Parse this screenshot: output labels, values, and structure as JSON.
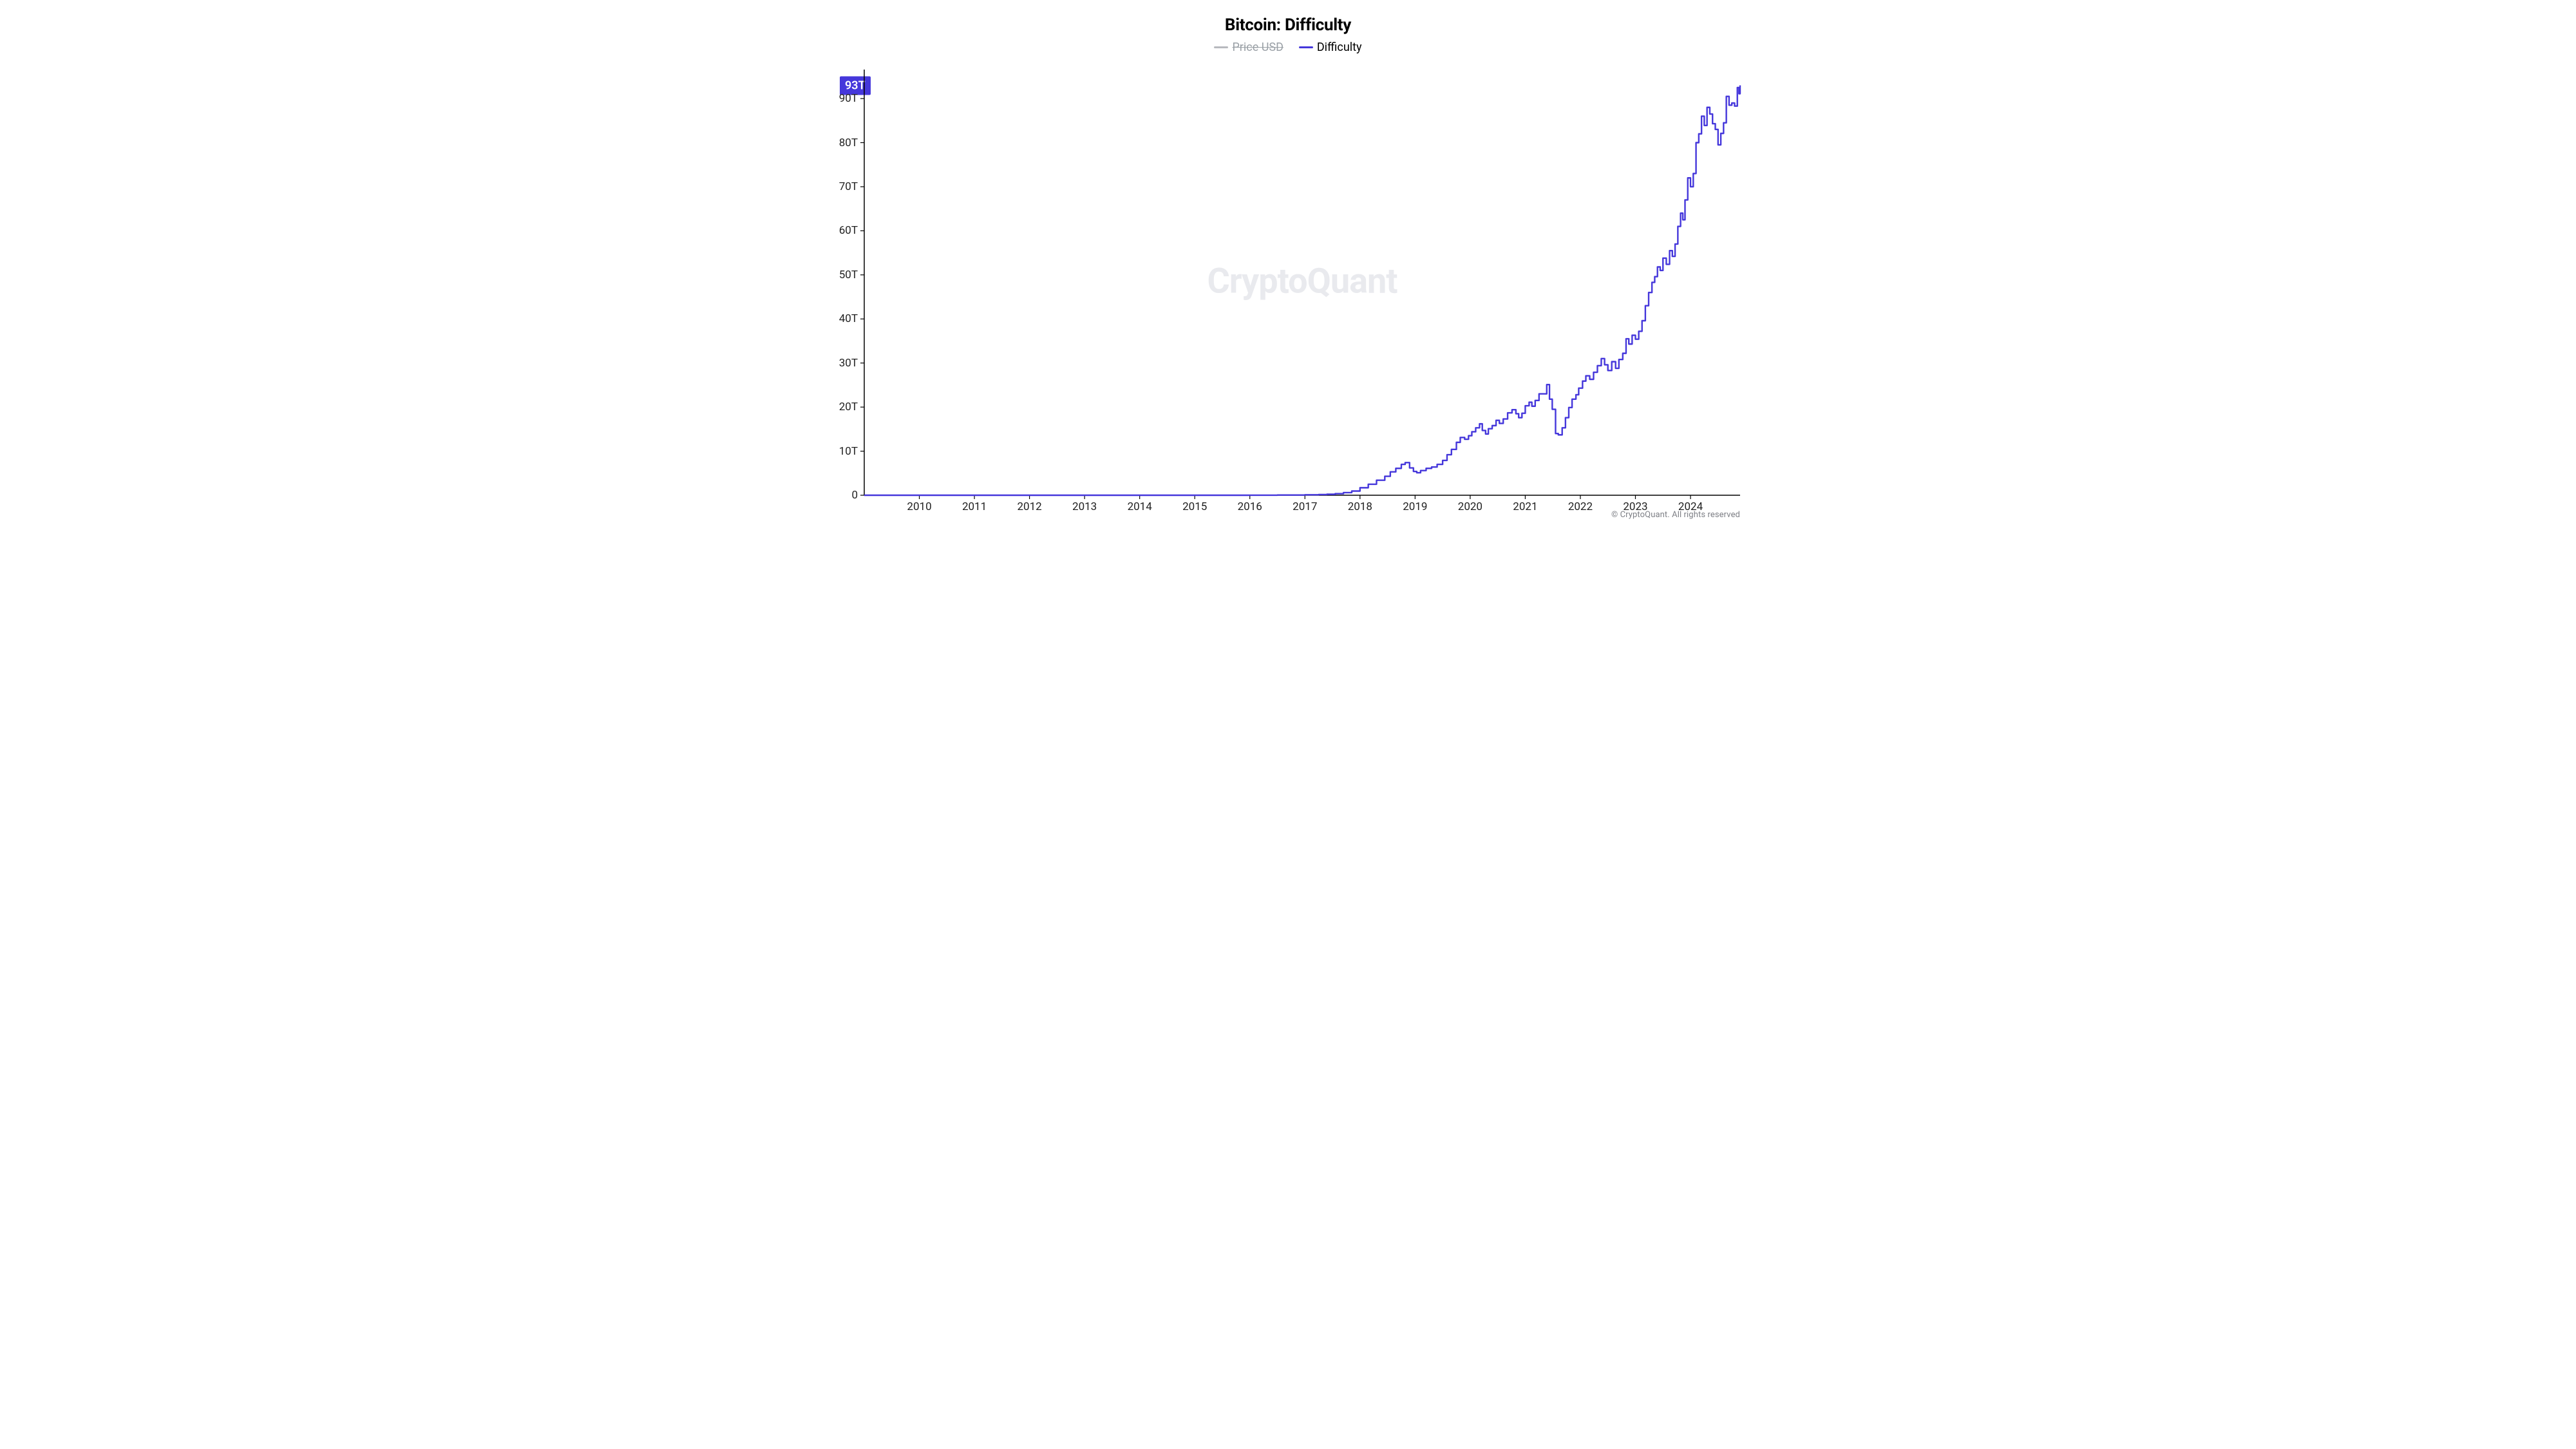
{
  "chart": {
    "type": "line",
    "title": "Bitcoin: Difficulty",
    "title_fontsize": 26,
    "background_color": "#ffffff",
    "watermark_text": "CryptoQuant",
    "watermark_color": "#e9eaee",
    "watermark_fontsize": 54,
    "copyright": "© CryptoQuant. All rights reserved",
    "copyright_fontsize": 13,
    "legend": [
      {
        "label": "Price USD",
        "color": "#b7b9be",
        "enabled": false
      },
      {
        "label": "Difficulty",
        "color": "#4537db",
        "enabled": true
      }
    ],
    "legend_fontsize": 18,
    "x": {
      "domain_min": 2009.0,
      "domain_max": 2024.9,
      "ticks": [
        2010,
        2011,
        2012,
        2013,
        2014,
        2015,
        2016,
        2017,
        2018,
        2019,
        2020,
        2021,
        2022,
        2023,
        2024
      ],
      "tick_labels": [
        "2010",
        "2011",
        "2012",
        "2013",
        "2014",
        "2015",
        "2016",
        "2017",
        "2018",
        "2019",
        "2020",
        "2021",
        "2022",
        "2023",
        "2024"
      ],
      "tick_fontsize": 17
    },
    "y": {
      "domain_min": 0,
      "domain_max": 96,
      "ticks": [
        0,
        10,
        20,
        30,
        40,
        50,
        60,
        70,
        80,
        90
      ],
      "tick_labels": [
        "0",
        "10T",
        "20T",
        "30T",
        "40T",
        "50T",
        "60T",
        "70T",
        "80T",
        "90T"
      ],
      "tick_fontsize": 17
    },
    "current_value_badge": {
      "text": "93T",
      "y": 93,
      "bg": "#4537db",
      "fg": "#ffffff",
      "fontsize": 18
    },
    "axis_color": "#000000",
    "tick_len": 6,
    "series": {
      "name": "Difficulty",
      "color": "#4537db",
      "line_width": 2.4,
      "points": [
        [
          2009.0,
          0.0
        ],
        [
          2010.0,
          0.0
        ],
        [
          2011.0,
          0.0
        ],
        [
          2012.0,
          0.0
        ],
        [
          2013.0,
          0.0
        ],
        [
          2014.0,
          0.0
        ],
        [
          2015.0,
          0.0
        ],
        [
          2016.0,
          0.01
        ],
        [
          2016.5,
          0.05
        ],
        [
          2017.0,
          0.1
        ],
        [
          2017.25,
          0.15
        ],
        [
          2017.4,
          0.22
        ],
        [
          2017.55,
          0.35
        ],
        [
          2017.7,
          0.6
        ],
        [
          2017.85,
          0.95
        ],
        [
          2018.0,
          1.7
        ],
        [
          2018.15,
          2.5
        ],
        [
          2018.3,
          3.4
        ],
        [
          2018.45,
          4.3
        ],
        [
          2018.55,
          5.3
        ],
        [
          2018.65,
          6.1
        ],
        [
          2018.75,
          7.0
        ],
        [
          2018.82,
          7.4
        ],
        [
          2018.9,
          6.2
        ],
        [
          2018.97,
          5.4
        ],
        [
          2019.03,
          5.1
        ],
        [
          2019.1,
          5.6
        ],
        [
          2019.2,
          6.1
        ],
        [
          2019.3,
          6.4
        ],
        [
          2019.4,
          7.0
        ],
        [
          2019.5,
          7.9
        ],
        [
          2019.58,
          9.2
        ],
        [
          2019.66,
          10.4
        ],
        [
          2019.75,
          12.0
        ],
        [
          2019.82,
          13.1
        ],
        [
          2019.9,
          12.7
        ],
        [
          2019.97,
          13.5
        ],
        [
          2020.03,
          14.4
        ],
        [
          2020.1,
          15.3
        ],
        [
          2020.17,
          16.2
        ],
        [
          2020.22,
          14.7
        ],
        [
          2020.28,
          13.9
        ],
        [
          2020.33,
          15.1
        ],
        [
          2020.4,
          15.8
        ],
        [
          2020.47,
          17.0
        ],
        [
          2020.53,
          16.3
        ],
        [
          2020.6,
          17.3
        ],
        [
          2020.68,
          18.7
        ],
        [
          2020.76,
          19.4
        ],
        [
          2020.83,
          18.5
        ],
        [
          2020.88,
          17.6
        ],
        [
          2020.94,
          18.6
        ],
        [
          2021.0,
          20.3
        ],
        [
          2021.07,
          21.1
        ],
        [
          2021.12,
          20.2
        ],
        [
          2021.18,
          21.5
        ],
        [
          2021.25,
          23.0
        ],
        [
          2021.33,
          23.0
        ],
        [
          2021.39,
          25.1
        ],
        [
          2021.44,
          21.8
        ],
        [
          2021.49,
          19.5
        ],
        [
          2021.55,
          14.0
        ],
        [
          2021.6,
          13.7
        ],
        [
          2021.67,
          15.3
        ],
        [
          2021.73,
          17.6
        ],
        [
          2021.79,
          19.9
        ],
        [
          2021.85,
          21.8
        ],
        [
          2021.92,
          22.8
        ],
        [
          2021.97,
          24.3
        ],
        [
          2022.04,
          25.9
        ],
        [
          2022.1,
          27.1
        ],
        [
          2022.17,
          26.3
        ],
        [
          2022.24,
          27.9
        ],
        [
          2022.31,
          29.4
        ],
        [
          2022.38,
          31.0
        ],
        [
          2022.44,
          29.6
        ],
        [
          2022.5,
          28.3
        ],
        [
          2022.57,
          30.3
        ],
        [
          2022.64,
          28.8
        ],
        [
          2022.7,
          30.8
        ],
        [
          2022.77,
          32.2
        ],
        [
          2022.83,
          35.5
        ],
        [
          2022.88,
          34.3
        ],
        [
          2022.94,
          36.3
        ],
        [
          2023.0,
          35.4
        ],
        [
          2023.06,
          37.2
        ],
        [
          2023.12,
          39.6
        ],
        [
          2023.18,
          43.0
        ],
        [
          2023.24,
          46.0
        ],
        [
          2023.3,
          48.3
        ],
        [
          2023.35,
          49.6
        ],
        [
          2023.4,
          51.8
        ],
        [
          2023.45,
          51.0
        ],
        [
          2023.5,
          53.8
        ],
        [
          2023.56,
          52.4
        ],
        [
          2023.62,
          55.5
        ],
        [
          2023.67,
          54.2
        ],
        [
          2023.72,
          57.0
        ],
        [
          2023.77,
          61.0
        ],
        [
          2023.82,
          64.0
        ],
        [
          2023.86,
          62.5
        ],
        [
          2023.9,
          67.0
        ],
        [
          2023.95,
          72.0
        ],
        [
          2024.0,
          70.0
        ],
        [
          2024.05,
          73.0
        ],
        [
          2024.1,
          80.0
        ],
        [
          2024.15,
          82.0
        ],
        [
          2024.2,
          86.0
        ],
        [
          2024.25,
          83.9
        ],
        [
          2024.3,
          88.0
        ],
        [
          2024.35,
          86.5
        ],
        [
          2024.4,
          84.3
        ],
        [
          2024.45,
          83.0
        ],
        [
          2024.5,
          79.5
        ],
        [
          2024.55,
          82.1
        ],
        [
          2024.6,
          84.5
        ],
        [
          2024.65,
          90.5
        ],
        [
          2024.7,
          88.5
        ],
        [
          2024.75,
          89.0
        ],
        [
          2024.8,
          88.3
        ],
        [
          2024.85,
          92.5
        ],
        [
          2024.88,
          91.1
        ],
        [
          2024.9,
          93.0
        ]
      ]
    }
  }
}
